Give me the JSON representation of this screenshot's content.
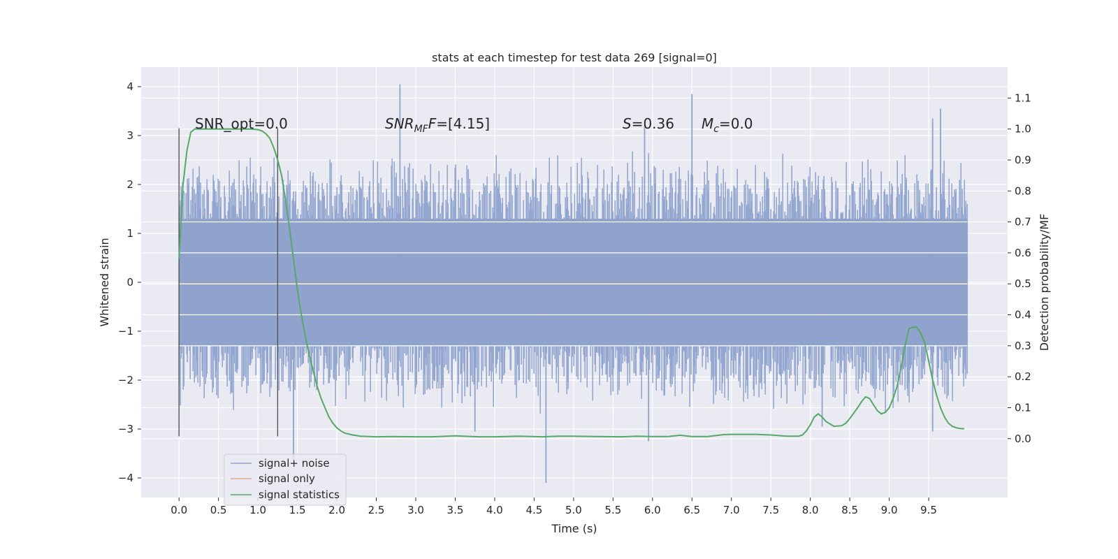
{
  "chart_data": {
    "type": "line",
    "title": "stats at each timestep for test data 269 [signal=0]",
    "xlabel": "Time (s)",
    "ylabel": "Whitened strain",
    "y2label": "Detection probability/MF",
    "xlim": [
      -0.48,
      10.5
    ],
    "ylim": [
      -4.4,
      4.4
    ],
    "y2lim": [
      -0.19,
      1.2
    ],
    "x_ticks": [
      0.0,
      0.5,
      1.0,
      1.5,
      2.0,
      2.5,
      3.0,
      3.5,
      4.0,
      4.5,
      5.0,
      5.5,
      6.0,
      6.5,
      7.0,
      7.5,
      8.0,
      8.5,
      9.0,
      9.5
    ],
    "x_tick_labels": [
      "0.0",
      "0.5",
      "1.0",
      "1.5",
      "2.0",
      "2.5",
      "3.0",
      "3.5",
      "4.0",
      "4.5",
      "5.0",
      "5.5",
      "6.0",
      "6.5",
      "7.0",
      "7.5",
      "8.0",
      "8.5",
      "9.0",
      "9.5"
    ],
    "y_ticks": [
      4,
      3,
      2,
      1,
      0,
      -1,
      -2,
      -3,
      -4
    ],
    "y_tick_labels": [
      "4",
      "3",
      "2",
      "1",
      "0",
      "−1",
      "−2",
      "−3",
      "−4"
    ],
    "y2_ticks": [
      1.1,
      1.0,
      0.9,
      0.8,
      0.7,
      0.6,
      0.5,
      0.4,
      0.3,
      0.2,
      0.1,
      0.0
    ],
    "y2_tick_labels": [
      "1.1",
      "1.0",
      "0.9",
      "0.8",
      "0.7",
      "0.6",
      "0.5",
      "0.4",
      "0.3",
      "0.2",
      "0.1",
      "0.0"
    ],
    "grid": true,
    "legend_position": "lower-left",
    "annotations": {
      "snr_opt": "SNR_opt=0.0",
      "snr_mf_prefix": "SNR",
      "snr_mf_sub": "MF",
      "snr_mf_value": "=[4.15]",
      "s_var": "S",
      "s_value": "=0.36",
      "mc_var": "M",
      "mc_sub": "c",
      "mc_value": "=0.0"
    },
    "vlines": [
      {
        "x": 0.0,
        "ymin": -3.15,
        "ymax": 3.15
      },
      {
        "x": 1.25,
        "ymin": -3.15,
        "ymax": 3.15
      }
    ],
    "series": [
      {
        "name": "signal+ noise",
        "color": "#8fa3cd",
        "axis": "left",
        "x_start": 0.0,
        "x_end": 9.99,
        "core_amplitude": 1.3,
        "typical_peak": 2.3,
        "spikes": [
          {
            "x": 2.8,
            "y": 4.05
          },
          {
            "x": 6.5,
            "y": 3.85
          },
          {
            "x": 9.65,
            "y": 3.55
          },
          {
            "x": 9.55,
            "y": 3.35
          },
          {
            "x": 5.9,
            "y": 3.2
          },
          {
            "x": 1.45,
            "y": -3.65
          },
          {
            "x": 4.65,
            "y": -4.1
          },
          {
            "x": 5.95,
            "y": -3.25
          },
          {
            "x": 3.75,
            "y": -3.05
          },
          {
            "x": 9.55,
            "y": -3.05
          },
          {
            "x": 8.15,
            "y": -2.95
          }
        ]
      },
      {
        "name": "signal only",
        "color": "#dd8452",
        "axis": "left",
        "x": [
          0.0,
          9.99
        ],
        "y": [
          0.0,
          0.0
        ]
      },
      {
        "name": "signal statistics",
        "color": "#55a868",
        "axis": "right",
        "x": [
          0.0,
          0.05,
          0.1,
          0.15,
          0.2,
          0.3,
          0.4,
          0.5,
          0.6,
          0.7,
          0.8,
          0.9,
          1.0,
          1.05,
          1.1,
          1.15,
          1.2,
          1.25,
          1.3,
          1.35,
          1.4,
          1.45,
          1.5,
          1.55,
          1.6,
          1.65,
          1.7,
          1.75,
          1.8,
          1.85,
          1.9,
          1.95,
          2.0,
          2.05,
          2.1,
          2.2,
          2.3,
          2.5,
          2.7,
          3.0,
          3.2,
          3.5,
          3.8,
          4.0,
          4.3,
          4.6,
          4.8,
          5.0,
          5.3,
          5.6,
          5.8,
          6.0,
          6.2,
          6.35,
          6.5,
          6.7,
          6.9,
          7.0,
          7.3,
          7.5,
          7.7,
          7.85,
          7.9,
          7.95,
          8.0,
          8.05,
          8.1,
          8.15,
          8.2,
          8.3,
          8.4,
          8.45,
          8.5,
          8.6,
          8.65,
          8.7,
          8.75,
          8.8,
          8.85,
          8.9,
          8.95,
          9.0,
          9.05,
          9.1,
          9.15,
          9.2,
          9.25,
          9.3,
          9.35,
          9.4,
          9.45,
          9.5,
          9.55,
          9.6,
          9.65,
          9.7,
          9.75,
          9.8,
          9.85,
          9.9,
          9.95
        ],
        "y": [
          0.58,
          0.82,
          0.93,
          0.99,
          1.0,
          1.0,
          1.0,
          1.0,
          1.0,
          1.0,
          1.0,
          1.0,
          0.998,
          0.994,
          0.985,
          0.97,
          0.94,
          0.9,
          0.85,
          0.77,
          0.68,
          0.58,
          0.48,
          0.4,
          0.33,
          0.27,
          0.22,
          0.17,
          0.13,
          0.1,
          0.07,
          0.05,
          0.035,
          0.025,
          0.018,
          0.012,
          0.008,
          0.006,
          0.007,
          0.006,
          0.006,
          0.009,
          0.006,
          0.006,
          0.008,
          0.006,
          0.008,
          0.008,
          0.007,
          0.006,
          0.008,
          0.007,
          0.007,
          0.011,
          0.007,
          0.007,
          0.013,
          0.014,
          0.014,
          0.012,
          0.008,
          0.008,
          0.012,
          0.025,
          0.045,
          0.07,
          0.08,
          0.07,
          0.055,
          0.04,
          0.042,
          0.05,
          0.065,
          0.1,
          0.12,
          0.135,
          0.13,
          0.11,
          0.09,
          0.08,
          0.085,
          0.1,
          0.13,
          0.17,
          0.23,
          0.3,
          0.355,
          0.36,
          0.36,
          0.34,
          0.31,
          0.25,
          0.19,
          0.14,
          0.1,
          0.07,
          0.05,
          0.04,
          0.035,
          0.033,
          0.032
        ]
      }
    ]
  }
}
